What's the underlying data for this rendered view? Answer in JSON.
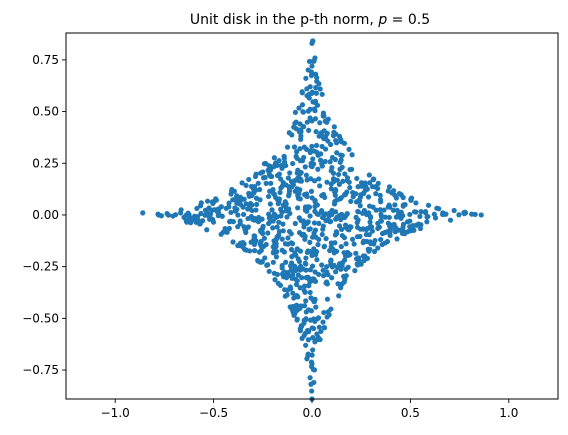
{
  "chart_data": {
    "type": "scatter",
    "title": "Unit disk in the p-th norm, ",
    "title_math_var": "p",
    "title_math_rest": " = 0.5",
    "xlabel": "",
    "ylabel": "",
    "xlim": [
      -1.25,
      1.25
    ],
    "ylim": [
      -0.89,
      0.88
    ],
    "xticks": [
      -1.0,
      -0.5,
      0.0,
      0.5,
      1.0
    ],
    "xtick_labels": [
      "−1.0",
      "−0.5",
      "0.0",
      "0.5",
      "1.0"
    ],
    "yticks": [
      -0.75,
      -0.5,
      -0.25,
      0.0,
      0.25,
      0.5,
      0.75
    ],
    "ytick_labels": [
      "−0.75",
      "−0.50",
      "−0.25",
      "0.00",
      "0.25",
      "0.50",
      "0.75"
    ],
    "grid": false,
    "marker_color": "#1f77b4",
    "n_points": 1000,
    "shape": "p-norm unit disk, p = 0.5: |x|^0.5 + |y|^0.5 <= 1 (astroid-like four-pointed star)",
    "x_extent": [
      -0.86,
      0.86
    ],
    "y_extent": [
      -0.89,
      0.83
    ],
    "points_sample": [
      {
        "x": -0.86,
        "y": 0.01
      },
      {
        "x": 0.86,
        "y": 0.0
      },
      {
        "x": 0.0,
        "y": 0.83
      },
      {
        "x": 0.0,
        "y": -0.89
      },
      {
        "x": -0.78,
        "y": 0.0
      },
      {
        "x": 0.78,
        "y": 0.01
      },
      {
        "x": 0.0,
        "y": 0.72
      },
      {
        "x": 0.0,
        "y": -0.72
      }
    ]
  }
}
